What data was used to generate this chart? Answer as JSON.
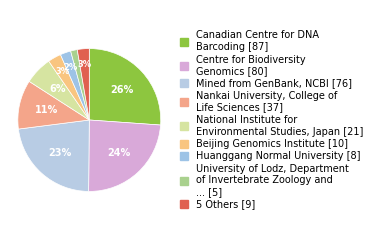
{
  "labels": [
    "Canadian Centre for DNA\nBarcoding [87]",
    "Centre for Biodiversity\nGenomics [80]",
    "Mined from GenBank, NCBI [76]",
    "Nankai University, College of\nLife Sciences [37]",
    "National Institute for\nEnvironmental Studies, Japan [21]",
    "Beijing Genomics Institute [10]",
    "Huanggang Normal University [8]",
    "University of Lodz, Department\nof Invertebrate Zoology and\n... [5]",
    "5 Others [9]"
  ],
  "values": [
    87,
    80,
    76,
    37,
    21,
    10,
    8,
    5,
    9
  ],
  "colors": [
    "#8dc63f",
    "#d9a9d9",
    "#b8cce4",
    "#f4a58a",
    "#d6e4a1",
    "#f9c580",
    "#9dc3e6",
    "#a9d18e",
    "#e06050"
  ],
  "text_color": "white",
  "legend_fontsize": 7.0,
  "figsize": [
    3.8,
    2.4
  ],
  "dpi": 100
}
